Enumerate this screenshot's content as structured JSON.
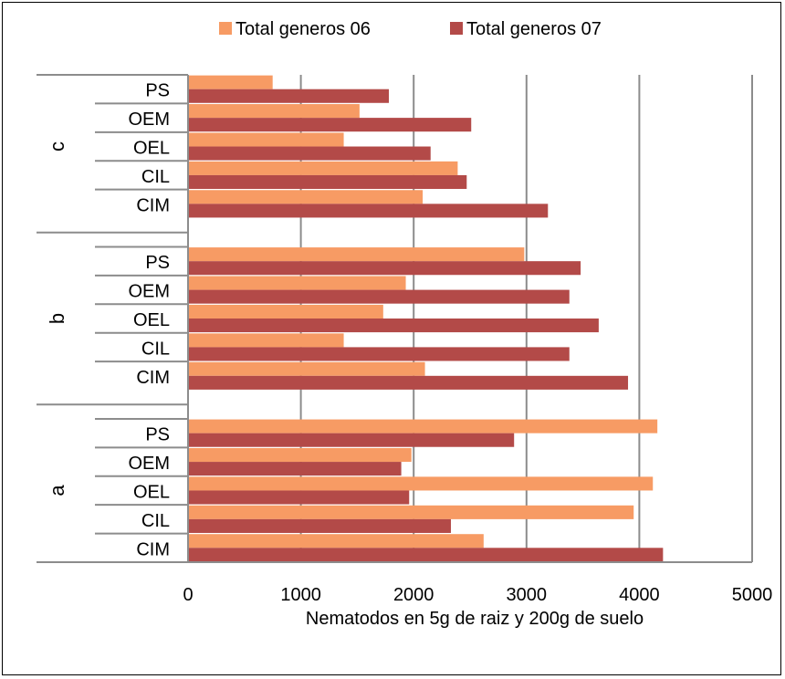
{
  "chart_data": {
    "type": "bar",
    "orientation": "horizontal",
    "groups": [
      {
        "name": "a",
        "categories": [
          "CIM",
          "CIL",
          "OEL",
          "OEM",
          "PS"
        ]
      },
      {
        "name": "b",
        "categories": [
          "CIM",
          "CIL",
          "OEL",
          "OEM",
          "PS"
        ]
      },
      {
        "name": "c",
        "categories": [
          "CIM",
          "CIL",
          "OEL",
          "OEM",
          "PS"
        ]
      }
    ],
    "series": [
      {
        "name": "Total generos 06",
        "color": "#F79B64",
        "values": [
          2620,
          3950,
          4120,
          1980,
          4160,
          2100,
          1380,
          1730,
          1930,
          2980,
          2080,
          2390,
          1380,
          1520,
          750
        ]
      },
      {
        "name": "Total generos 07",
        "color": "#B34A48",
        "values": [
          4210,
          2330,
          1960,
          1890,
          2890,
          3900,
          3380,
          3640,
          3380,
          3480,
          3190,
          2470,
          2150,
          2510,
          1780
        ]
      }
    ],
    "xlabel": "Nematodos en 5g de raiz y 200g de suelo",
    "ylabel": "",
    "xlim": [
      0,
      5000
    ],
    "xticks": [
      "0",
      "1000",
      "2000",
      "3000",
      "4000",
      "5000"
    ],
    "grid": true,
    "legend_position": "top"
  }
}
